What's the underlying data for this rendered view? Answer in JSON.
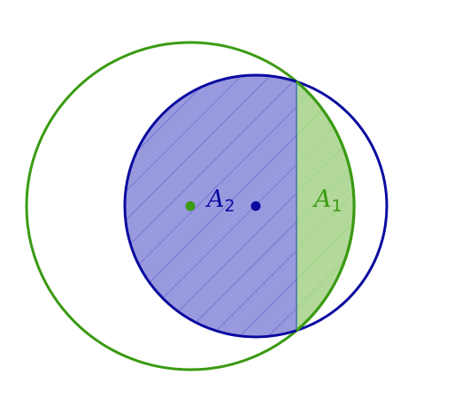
{
  "diagram": {
    "labels": {
      "a1": {
        "base": "A",
        "sub": "1"
      },
      "a2": {
        "base": "A",
        "sub": "2"
      }
    },
    "colors": {
      "green": "#3a9a12",
      "green_fill": "#b2d99a",
      "green_hatch": "#95cf78",
      "blue": "#0a0aa0",
      "blue_fill": "#9999de",
      "blue_hatch": "#5f5fcf",
      "chord": "#4f7fb0"
    }
  }
}
